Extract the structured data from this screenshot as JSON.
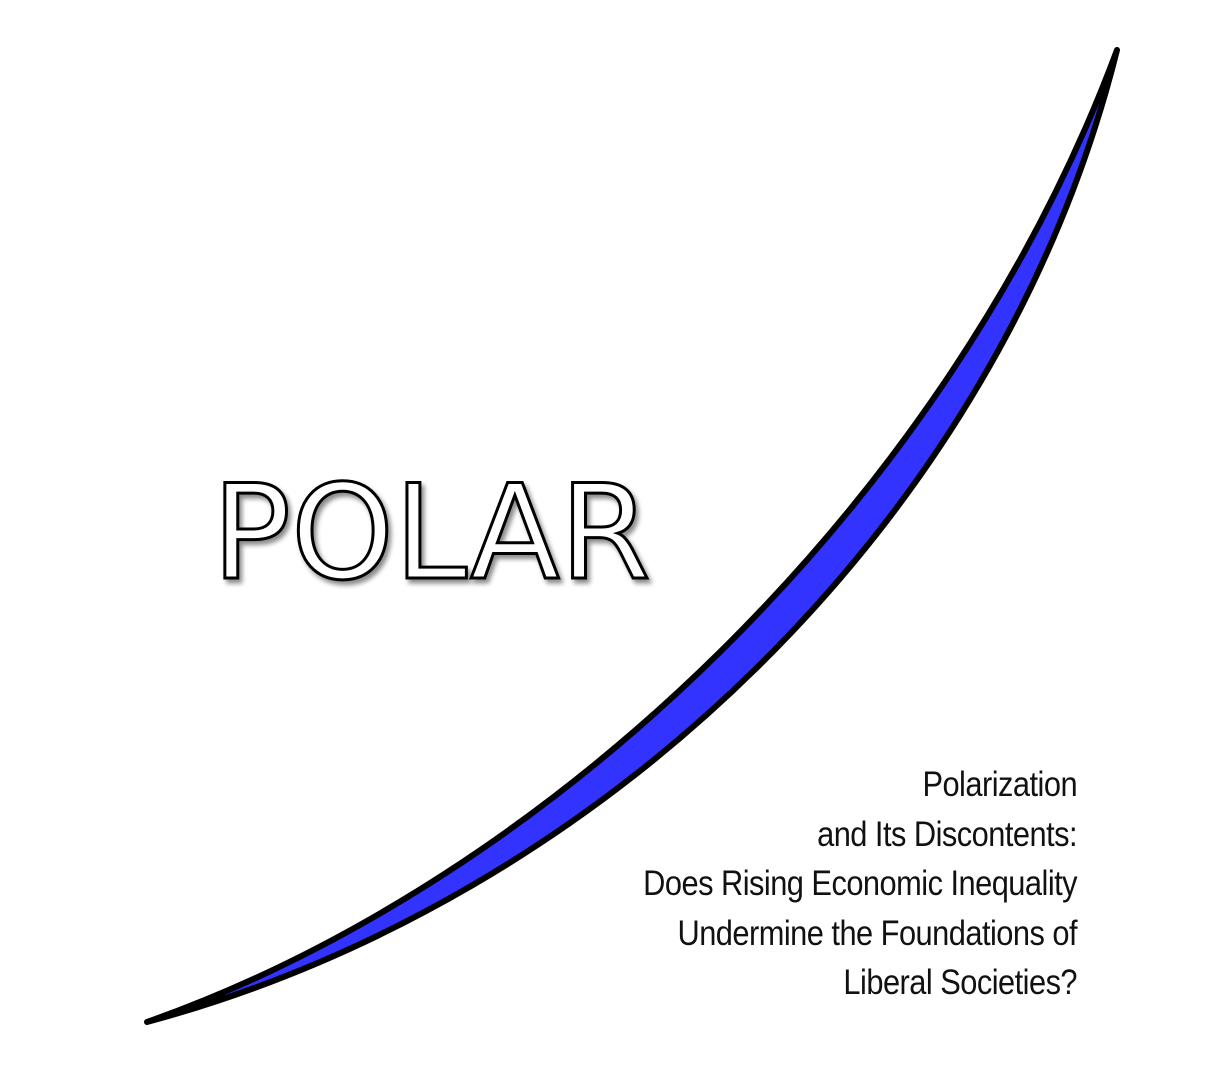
{
  "logo": {
    "title": "POLAR"
  },
  "subtitle": {
    "lines": [
      "Polarization",
      "and Its Discontents:",
      "Does Rising Economic Inequality",
      "Undermine the Foundations of",
      "Liberal Societies?"
    ]
  }
}
